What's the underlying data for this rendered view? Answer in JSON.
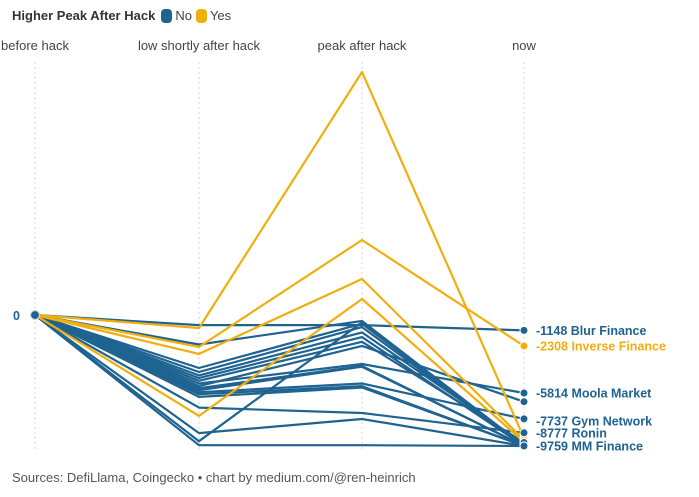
{
  "legend": {
    "title": "Higher Peak After Hack",
    "items": [
      {
        "label": "No",
        "color": "#1f6391"
      },
      {
        "label": "Yes",
        "color": "#f0ae0f"
      }
    ]
  },
  "source": "Sources: DefiLlama, Coingecko • chart by medium.com/@ren-heinrich",
  "chart_data": {
    "type": "line",
    "subtype": "slope/parallel-coordinates",
    "title": "Higher Peak After Hack",
    "categories": [
      "before hack",
      "low shortly after hack",
      "peak after hack",
      "now"
    ],
    "ylim": [
      -10000,
      20000
    ],
    "y_tick_labels": [
      {
        "value": 0,
        "label": "0"
      }
    ],
    "grid": "vertical dotted lines at each category",
    "legend_position": "top-left",
    "colors": {
      "No": "#1f6391",
      "Yes": "#f0ae0f"
    },
    "series": [
      {
        "name": "",
        "group": "Yes",
        "values": [
          0,
          -970,
          18100,
          -9160
        ]
      },
      {
        "name": "Inverse Finance",
        "group": "Yes",
        "values": [
          0,
          -2380,
          5590,
          -2308
        ]
      },
      {
        "name": "",
        "group": "Yes",
        "values": [
          0,
          -2900,
          2680,
          -9310
        ]
      },
      {
        "name": "",
        "group": "Yes",
        "values": [
          0,
          -7520,
          1190,
          -9460
        ]
      },
      {
        "name": "Blur Finance",
        "group": "No",
        "values": [
          0,
          -750,
          -750,
          -1148
        ]
      },
      {
        "name": "",
        "group": "No",
        "values": [
          0,
          -2200,
          -450,
          -9759
        ]
      },
      {
        "name": "",
        "group": "No",
        "values": [
          0,
          -3950,
          -650,
          -9759
        ]
      },
      {
        "name": "",
        "group": "No",
        "values": [
          0,
          -4250,
          -900,
          -9759
        ]
      },
      {
        "name": "",
        "group": "No",
        "values": [
          0,
          -4500,
          -1300,
          -9600
        ]
      },
      {
        "name": "",
        "group": "No",
        "values": [
          0,
          -4700,
          -1650,
          -9759
        ]
      },
      {
        "name": "",
        "group": "No",
        "values": [
          0,
          -4900,
          -2000,
          -9500
        ]
      },
      {
        "name": "Moola Market",
        "group": "No",
        "values": [
          0,
          -5100,
          -3650,
          -5814
        ]
      },
      {
        "name": "",
        "group": "No",
        "values": [
          0,
          -5300,
          -2300,
          -6460
        ]
      },
      {
        "name": "",
        "group": "No",
        "values": [
          0,
          -5450,
          -3800,
          -9759
        ]
      },
      {
        "name": "",
        "group": "No",
        "values": [
          0,
          -5600,
          -3850,
          -9759
        ]
      },
      {
        "name": "Gym Network",
        "group": "No",
        "values": [
          0,
          -5750,
          -5100,
          -7737
        ]
      },
      {
        "name": "",
        "group": "No",
        "values": [
          0,
          -5900,
          -5300,
          -9759
        ]
      },
      {
        "name": "",
        "group": "No",
        "values": [
          0,
          -6100,
          -5400,
          -9759
        ]
      },
      {
        "name": "Ronin",
        "group": "No",
        "values": [
          0,
          -6900,
          -7300,
          -8777
        ]
      },
      {
        "name": "",
        "group": "No",
        "values": [
          0,
          -8800,
          -7750,
          -9759
        ]
      },
      {
        "name": "",
        "group": "No",
        "values": [
          0,
          -9400,
          -550,
          -9759
        ]
      },
      {
        "name": "MM Finance",
        "group": "No",
        "values": [
          0,
          -9700,
          -9700,
          -9759
        ]
      }
    ],
    "end_labels": [
      {
        "text": "-1148 Blur Finance",
        "value": -1148,
        "group": "No"
      },
      {
        "text": "-2308 Inverse Finance",
        "value": -2308,
        "group": "Yes"
      },
      {
        "text": "-5814 Moola Market",
        "value": -5814,
        "group": "No"
      },
      {
        "text": "-7737 Gym Network",
        "value": -7737,
        "group": "No"
      },
      {
        "text": "-8777 Ronin",
        "value": -8777,
        "group": "No"
      },
      {
        "text": "-9759 MM Finance",
        "value": -9759,
        "group": "No"
      }
    ]
  }
}
